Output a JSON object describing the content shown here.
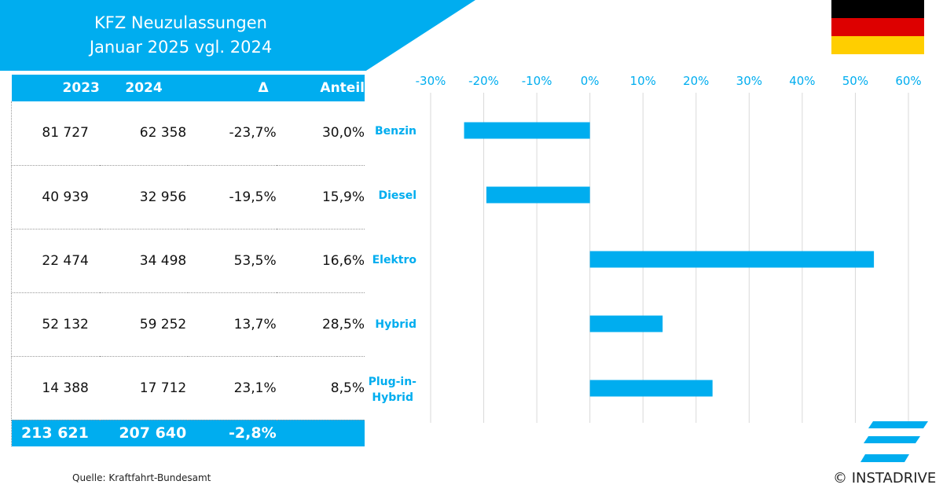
{
  "title": {
    "line1": "KFZ Neuzulassungen",
    "line2": "Januar 2025 vgl. 2024"
  },
  "colors": {
    "accent": "#00adef",
    "flag_black": "#000000",
    "flag_red": "#dd0000",
    "flag_gold": "#ffce00"
  },
  "flag_icon": "germany-flag",
  "table": {
    "headers": [
      "2023",
      "2024",
      "Δ",
      "Anteil"
    ],
    "rows": [
      [
        "81 727",
        "62 358",
        "-23,7%",
        "30,0%"
      ],
      [
        "40 939",
        "32 956",
        "-19,5%",
        "15,9%"
      ],
      [
        "22 474",
        "34 498",
        "53,5%",
        "16,6%"
      ],
      [
        "52 132",
        "59 252",
        "13,7%",
        "28,5%"
      ],
      [
        "14 388",
        "17 712",
        "23,1%",
        "8,5%"
      ]
    ],
    "total": [
      "213 621",
      "207 640",
      "-2,8%",
      ""
    ]
  },
  "chart_data": {
    "type": "bar",
    "orientation": "horizontal",
    "categories": [
      "Benzin",
      "Diesel",
      "Elektro",
      "Hybrid",
      "Plug-in-Hybrid"
    ],
    "values": [
      -23.7,
      -19.5,
      53.5,
      13.7,
      23.1
    ],
    "xlim": [
      -30,
      60
    ],
    "xticks": [
      -30,
      -20,
      -10,
      0,
      10,
      20,
      30,
      40,
      50,
      60
    ],
    "tick_labels": [
      "-30%",
      "-20%",
      "-10%",
      "0%",
      "10%",
      "20%",
      "30%",
      "40%",
      "50%",
      "60%"
    ],
    "grid": true,
    "tick_position": "top"
  },
  "footer": {
    "source": "Quelle: Kraftfahrt-Bundesamt",
    "copyright": "© INSTADRIVE"
  },
  "logo_icon": "instadrive-logo"
}
